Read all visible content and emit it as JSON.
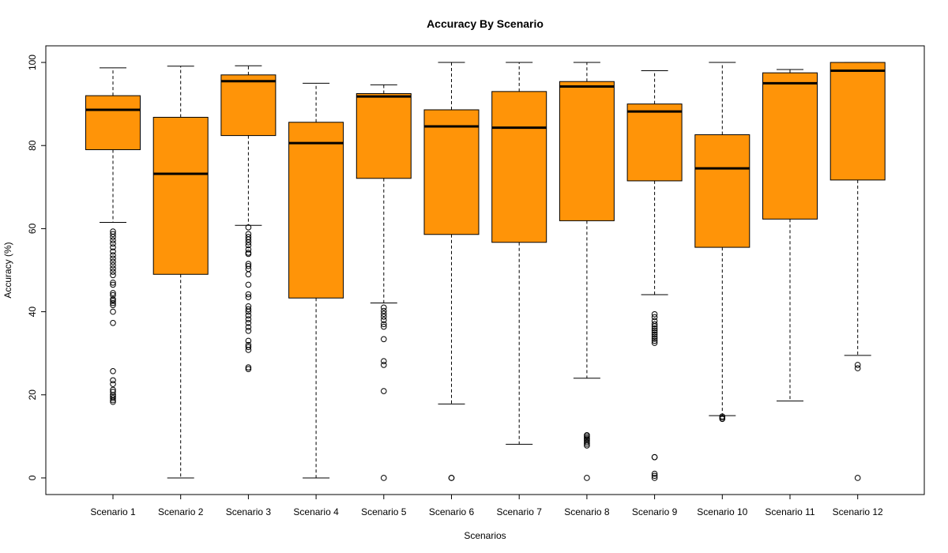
{
  "chart_data": {
    "type": "boxplot",
    "title": "Accuracy By Scenario",
    "xlabel": "Scenarios",
    "ylabel": "Accuracy (%)",
    "ylim": [
      -4,
      104
    ],
    "yticks": [
      0,
      20,
      40,
      60,
      80,
      100
    ],
    "box_color": "#FF9408",
    "categories": [
      "Scenario 1",
      "Scenario 2",
      "Scenario 3",
      "Scenario 4",
      "Scenario 5",
      "Scenario 6",
      "Scenario 7",
      "Scenario 8",
      "Scenario 9",
      "Scenario 10",
      "Scenario 11",
      "Scenario 12"
    ],
    "boxes": [
      {
        "whisker_low": 61.5,
        "q1": 79.0,
        "median": 88.6,
        "q3": 92.0,
        "whisker_high": 98.7,
        "outliers": [
          59.3,
          58.7,
          58.0,
          57.2,
          56.4,
          55.5,
          54.5,
          53.6,
          52.8,
          52.0,
          51.2,
          50.4,
          49.6,
          48.8,
          47.0,
          46.5,
          44.5,
          44.0,
          43.0,
          42.6,
          42.1,
          41.6,
          40.0,
          37.3,
          25.7,
          23.5,
          22.6,
          21.2,
          20.7,
          20.0,
          19.6,
          19.2,
          18.7,
          18.3
        ]
      },
      {
        "whisker_low": 0.0,
        "q1": 49.0,
        "median": 73.2,
        "q3": 86.8,
        "whisker_high": 99.1,
        "outliers": []
      },
      {
        "whisker_low": 60.8,
        "q1": 82.4,
        "median": 95.5,
        "q3": 97.0,
        "whisker_high": 99.2,
        "outliers": [
          60.3,
          58.7,
          58.0,
          57.4,
          56.7,
          56.0,
          55.0,
          54.2,
          53.9,
          51.5,
          51.0,
          50.3,
          49.0,
          46.5,
          44.2,
          43.5,
          41.3,
          40.6,
          40.0,
          39.1,
          38.2,
          37.3,
          36.3,
          35.4,
          33.0,
          32.0,
          31.5,
          30.8,
          26.6,
          26.2
        ]
      },
      {
        "whisker_low": 0.0,
        "q1": 43.3,
        "median": 80.6,
        "q3": 85.6,
        "whisker_high": 95.0,
        "outliers": []
      },
      {
        "whisker_low": 42.1,
        "q1": 72.1,
        "median": 91.8,
        "q3": 92.5,
        "whisker_high": 94.6,
        "outliers": [
          41.0,
          40.2,
          39.5,
          38.8,
          38.0,
          37.0,
          36.4,
          33.4,
          28.1,
          27.2,
          20.9,
          0.0
        ]
      },
      {
        "whisker_low": 17.8,
        "q1": 58.6,
        "median": 84.6,
        "q3": 88.6,
        "whisker_high": 100.0,
        "outliers": [
          0.0,
          0.0
        ]
      },
      {
        "whisker_low": 8.1,
        "q1": 56.7,
        "median": 84.3,
        "q3": 93.0,
        "whisker_high": 100.0,
        "outliers": []
      },
      {
        "whisker_low": 24.0,
        "q1": 61.9,
        "median": 94.2,
        "q3": 95.4,
        "whisker_high": 100.0,
        "outliers": [
          10.3,
          10.0,
          9.6,
          9.3,
          9.0,
          8.6,
          8.2,
          7.8,
          0.0
        ]
      },
      {
        "whisker_low": 44.1,
        "q1": 71.5,
        "median": 88.2,
        "q3": 90.0,
        "whisker_high": 98.0,
        "outliers": [
          39.4,
          38.7,
          37.8,
          37.0,
          36.5,
          36.0,
          35.5,
          35.0,
          34.5,
          34.0,
          33.5,
          33.0,
          32.5,
          5.0,
          5.0,
          1.0,
          0.5,
          0.0
        ]
      },
      {
        "whisker_low": 15.0,
        "q1": 55.5,
        "median": 74.5,
        "q3": 82.6,
        "whisker_high": 100.0,
        "outliers": [
          14.8,
          14.5,
          14.2
        ]
      },
      {
        "whisker_low": 18.5,
        "q1": 62.3,
        "median": 95.0,
        "q3": 97.5,
        "whisker_high": 98.3,
        "outliers": []
      },
      {
        "whisker_low": 29.5,
        "q1": 71.7,
        "median": 98.0,
        "q3": 100.0,
        "whisker_high": 100.0,
        "outliers": [
          27.2,
          26.4,
          0.0
        ]
      }
    ],
    "grid": false,
    "legend": "none"
  }
}
